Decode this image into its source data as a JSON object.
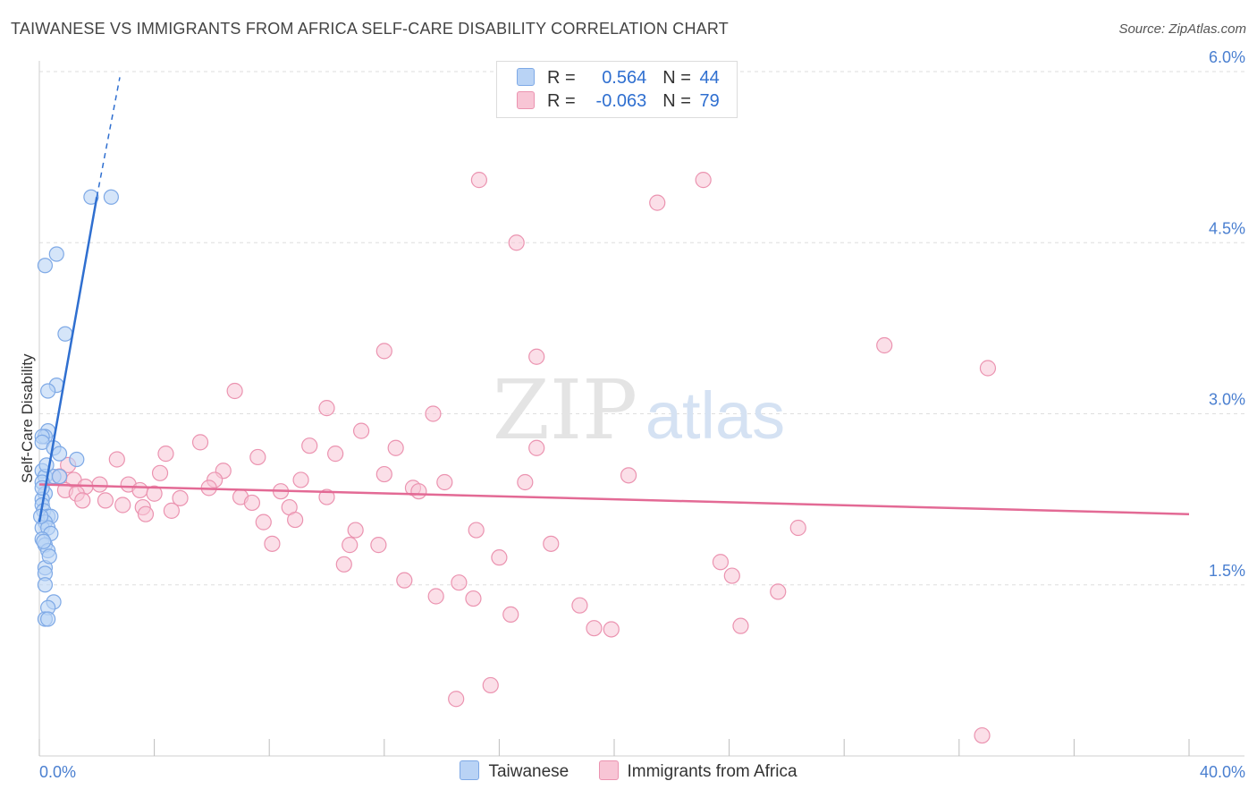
{
  "header": {
    "title": "TAIWANESE VS IMMIGRANTS FROM AFRICA SELF-CARE DISABILITY CORRELATION CHART",
    "source": "Source: ZipAtlas.com"
  },
  "watermark": {
    "zip": "ZIP",
    "atlas": "atlas"
  },
  "legend": {
    "r_label": "R =",
    "n_label": "N =",
    "taiwanese": {
      "r": "0.564",
      "n": "44"
    },
    "africa": {
      "r": "-0.063",
      "n": "79"
    }
  },
  "colors": {
    "taiwanese_fill": "#b9d3f5",
    "taiwanese_stroke": "#7ea9e6",
    "taiwanese_line": "#2f6fd0",
    "africa_fill": "#f8c5d5",
    "africa_stroke": "#eb93b0",
    "africa_line": "#e36a95",
    "tick_label": "#4a7fd0"
  },
  "chart_data": {
    "type": "scatter",
    "title": "TAIWANESE VS IMMIGRANTS FROM AFRICA SELF-CARE DISABILITY CORRELATION CHART",
    "xlabel": "",
    "ylabel": "Self-Care Disability",
    "xlim": [
      0,
      40
    ],
    "ylim": [
      0,
      6
    ],
    "x_tick_labels": [
      "0.0%",
      "40.0%"
    ],
    "y_ticks": [
      1.5,
      3.0,
      4.5,
      6.0
    ],
    "y_tick_labels": [
      "1.5%",
      "3.0%",
      "4.5%",
      "6.0%"
    ],
    "grid": true,
    "legend_position": "bottom",
    "series": [
      {
        "name": "Taiwanese",
        "r": 0.564,
        "n": 44,
        "trend": {
          "x0": 0.0,
          "y0": 2.05,
          "x1": 2.0,
          "y1": 4.9,
          "dash_to_x": 2.8,
          "dash_to_y": 5.95
        },
        "points": [
          [
            1.8,
            4.9
          ],
          [
            2.5,
            4.9
          ],
          [
            0.6,
            4.4
          ],
          [
            0.2,
            4.3
          ],
          [
            0.9,
            3.7
          ],
          [
            0.6,
            3.25
          ],
          [
            0.3,
            3.2
          ],
          [
            0.3,
            2.85
          ],
          [
            0.2,
            2.8
          ],
          [
            0.1,
            2.8
          ],
          [
            0.1,
            2.75
          ],
          [
            0.5,
            2.7
          ],
          [
            0.7,
            2.65
          ],
          [
            1.3,
            2.6
          ],
          [
            0.1,
            2.5
          ],
          [
            0.2,
            2.45
          ],
          [
            0.5,
            2.45
          ],
          [
            0.7,
            2.45
          ],
          [
            0.1,
            2.4
          ],
          [
            0.2,
            2.3
          ],
          [
            0.1,
            2.25
          ],
          [
            0.1,
            2.2
          ],
          [
            0.15,
            2.15
          ],
          [
            0.3,
            2.1
          ],
          [
            0.4,
            2.1
          ],
          [
            0.2,
            2.05
          ],
          [
            0.1,
            2.0
          ],
          [
            0.3,
            2.0
          ],
          [
            0.4,
            1.95
          ],
          [
            0.1,
            1.9
          ],
          [
            0.2,
            1.85
          ],
          [
            0.3,
            1.8
          ],
          [
            0.2,
            1.65
          ],
          [
            0.2,
            1.6
          ],
          [
            0.2,
            1.5
          ],
          [
            0.5,
            1.35
          ],
          [
            0.3,
            1.3
          ],
          [
            0.2,
            1.2
          ],
          [
            0.3,
            1.2
          ],
          [
            0.1,
            2.35
          ],
          [
            0.15,
            1.88
          ],
          [
            0.25,
            2.55
          ],
          [
            0.05,
            2.1
          ],
          [
            0.35,
            1.75
          ]
        ]
      },
      {
        "name": "Immigrants from Africa",
        "r": -0.063,
        "n": 79,
        "trend": {
          "x0": 0.0,
          "y0": 2.38,
          "x1": 40.0,
          "y1": 2.12
        },
        "points": [
          [
            15.3,
            5.05
          ],
          [
            23.1,
            5.05
          ],
          [
            21.5,
            4.85
          ],
          [
            16.6,
            4.5
          ],
          [
            29.4,
            3.6
          ],
          [
            12.0,
            3.55
          ],
          [
            17.3,
            3.5
          ],
          [
            33.0,
            3.4
          ],
          [
            6.8,
            3.2
          ],
          [
            10.0,
            3.05
          ],
          [
            13.7,
            3.0
          ],
          [
            11.2,
            2.85
          ],
          [
            5.6,
            2.75
          ],
          [
            9.4,
            2.72
          ],
          [
            12.4,
            2.7
          ],
          [
            17.3,
            2.7
          ],
          [
            10.3,
            2.65
          ],
          [
            4.4,
            2.65
          ],
          [
            7.6,
            2.62
          ],
          [
            2.7,
            2.6
          ],
          [
            1.0,
            2.55
          ],
          [
            6.4,
            2.5
          ],
          [
            4.2,
            2.48
          ],
          [
            12.0,
            2.47
          ],
          [
            20.5,
            2.46
          ],
          [
            0.7,
            2.45
          ],
          [
            1.2,
            2.42
          ],
          [
            6.1,
            2.42
          ],
          [
            9.1,
            2.42
          ],
          [
            14.1,
            2.4
          ],
          [
            16.9,
            2.4
          ],
          [
            2.1,
            2.38
          ],
          [
            3.1,
            2.38
          ],
          [
            1.6,
            2.36
          ],
          [
            5.9,
            2.35
          ],
          [
            13.0,
            2.35
          ],
          [
            0.9,
            2.33
          ],
          [
            3.5,
            2.33
          ],
          [
            8.4,
            2.32
          ],
          [
            13.2,
            2.32
          ],
          [
            1.3,
            2.3
          ],
          [
            4.0,
            2.3
          ],
          [
            7.0,
            2.27
          ],
          [
            10.0,
            2.27
          ],
          [
            4.9,
            2.26
          ],
          [
            1.5,
            2.24
          ],
          [
            2.3,
            2.24
          ],
          [
            7.4,
            2.22
          ],
          [
            2.9,
            2.2
          ],
          [
            3.6,
            2.18
          ],
          [
            8.7,
            2.18
          ],
          [
            4.6,
            2.15
          ],
          [
            3.7,
            2.12
          ],
          [
            8.9,
            2.07
          ],
          [
            7.8,
            2.05
          ],
          [
            11.0,
            1.98
          ],
          [
            15.2,
            1.98
          ],
          [
            26.4,
            2.0
          ],
          [
            10.8,
            1.85
          ],
          [
            11.8,
            1.85
          ],
          [
            8.1,
            1.86
          ],
          [
            17.8,
            1.86
          ],
          [
            16.0,
            1.74
          ],
          [
            10.6,
            1.68
          ],
          [
            23.7,
            1.7
          ],
          [
            24.1,
            1.58
          ],
          [
            12.7,
            1.54
          ],
          [
            14.6,
            1.52
          ],
          [
            25.7,
            1.44
          ],
          [
            13.8,
            1.4
          ],
          [
            15.1,
            1.38
          ],
          [
            18.8,
            1.32
          ],
          [
            16.4,
            1.24
          ],
          [
            24.4,
            1.14
          ],
          [
            19.3,
            1.12
          ],
          [
            19.9,
            1.11
          ],
          [
            15.7,
            0.62
          ],
          [
            14.5,
            0.5
          ],
          [
            32.8,
            0.18
          ]
        ]
      }
    ]
  },
  "bottom_legend": {
    "taiwanese": "Taiwanese",
    "africa": "Immigrants from Africa"
  }
}
